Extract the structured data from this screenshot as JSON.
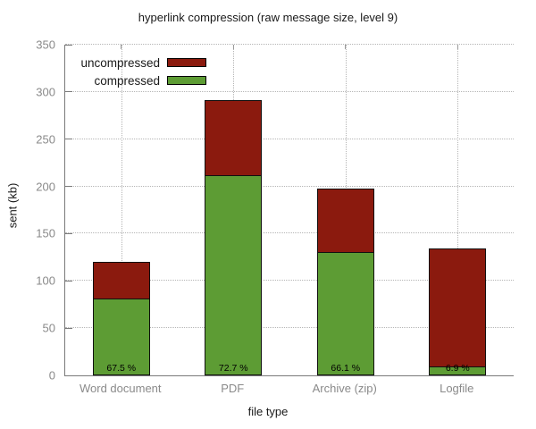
{
  "chart_data": {
    "type": "bar",
    "variant": "overlay (compressed drawn in front of uncompressed)",
    "title": "hyperlink compression (raw message size, level 9)",
    "xlabel": "file type",
    "ylabel": "sent (kb)",
    "ylim": [
      0,
      350
    ],
    "yticks": [
      0,
      50,
      100,
      150,
      200,
      250,
      300,
      350
    ],
    "grid": "dotted, horizontal at y ticks and vertical at category centers",
    "legend_position": "top-left-inside",
    "categories": [
      "Word document",
      "PDF",
      "Archive (zip)",
      "Logfile"
    ],
    "series": [
      {
        "name": "uncompressed",
        "color": "#8b1a0e",
        "values": [
          120,
          291,
          198,
          134
        ]
      },
      {
        "name": "compressed",
        "color": "#5d9c34",
        "values": [
          81,
          211.5,
          131,
          9.3
        ]
      }
    ],
    "bar_labels": [
      "67.5 %",
      "72.7 %",
      "66.1 %",
      "6.9 %"
    ],
    "colors": {
      "background": "#ffffff",
      "axis": "#7a7a7a",
      "grid": "#b5b5b5",
      "tick_label": "#8a8a8a",
      "text": "#1a1a1a",
      "bar_border": "#101010",
      "bar_label_text": "#000000"
    }
  }
}
